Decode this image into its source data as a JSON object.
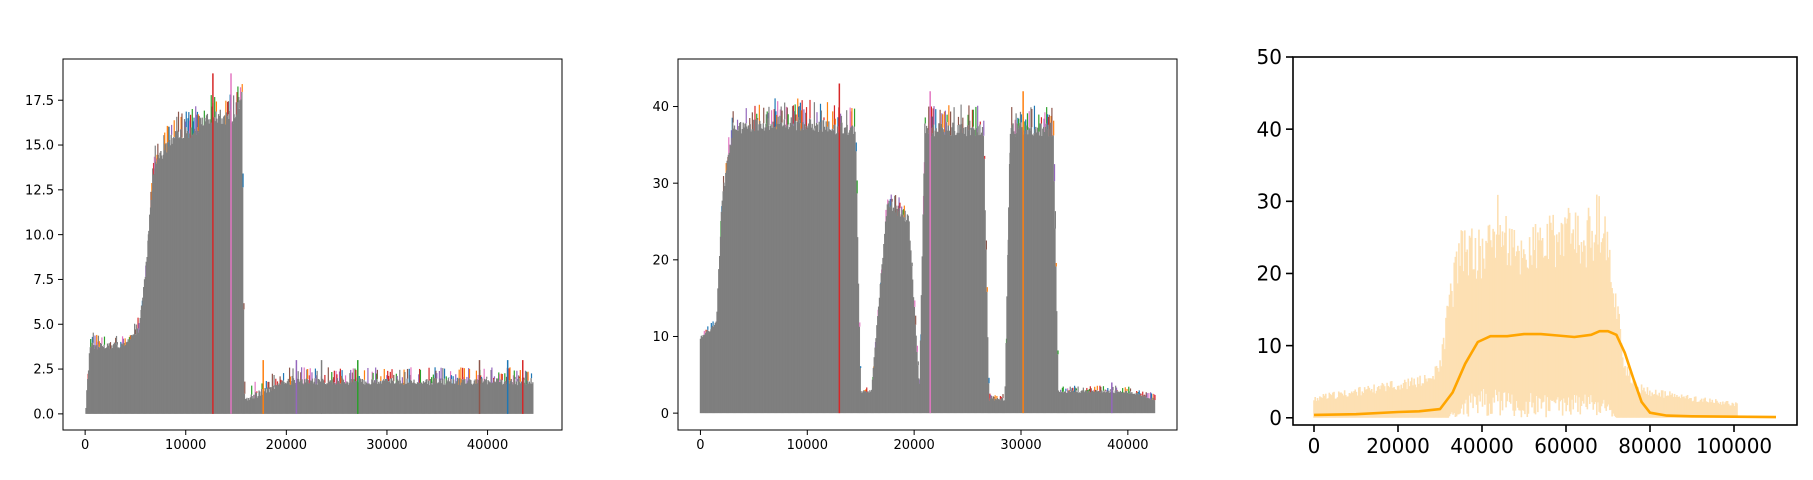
{
  "chart_data": [
    {
      "type": "line",
      "title": "",
      "xlabel": "",
      "ylabel": "",
      "xlim": [
        -2200,
        47400
      ],
      "ylim": [
        -0.9,
        19.8
      ],
      "xticks": [
        0,
        10000,
        20000,
        30000,
        40000
      ],
      "xtick_labels": [
        "0",
        "10000",
        "20000",
        "30000",
        "40000"
      ],
      "yticks": [
        0,
        2.5,
        5,
        7.5,
        10,
        12.5,
        15,
        17.5
      ],
      "ytick_labels": [
        "0.0",
        "2.5",
        "5.0",
        "7.5",
        "10.0",
        "12.5",
        "15.0",
        "17.5"
      ],
      "grid": false,
      "colors": [
        "#1f77b4",
        "#ff7f0e",
        "#2ca02c",
        "#d62728",
        "#9467bd",
        "#8c564b",
        "#e377c2",
        "#7f7f7f"
      ],
      "x": [
        0,
        500,
        2000,
        4000,
        5400,
        6000,
        6800,
        7800,
        9000,
        10500,
        12000,
        13500,
        14800,
        15600,
        15800,
        16000,
        20000,
        25000,
        30000,
        35000,
        40000,
        44500
      ],
      "series": [
        {
          "values": [
            0,
            4,
            4,
            4,
            5,
            8,
            14,
            15,
            16,
            16,
            17,
            17,
            17,
            18,
            1.5,
            1,
            2,
            2,
            2,
            2,
            2,
            2
          ]
        }
      ],
      "spikes": [
        {
          "x": 12700,
          "y": 19
        },
        {
          "x": 14500,
          "y": 19
        },
        {
          "x": 17700,
          "y": 3
        },
        {
          "x": 21000,
          "y": 3
        },
        {
          "x": 23500,
          "y": 3
        },
        {
          "x": 27100,
          "y": 3
        },
        {
          "x": 39200,
          "y": 3
        },
        {
          "x": 42000,
          "y": 3
        },
        {
          "x": 43500,
          "y": 3
        }
      ]
    },
    {
      "type": "line",
      "title": "",
      "xlabel": "",
      "ylabel": "",
      "xlim": [
        -2100,
        44600
      ],
      "ylim": [
        -2.2,
        46.2
      ],
      "xticks": [
        0,
        10000,
        20000,
        30000,
        40000
      ],
      "xtick_labels": [
        "0",
        "10000",
        "20000",
        "30000",
        "40000"
      ],
      "yticks": [
        0,
        10,
        20,
        30,
        40
      ],
      "ytick_labels": [
        "0",
        "10",
        "20",
        "30",
        "40"
      ],
      "grid": false,
      "colors": [
        "#1f77b4",
        "#ff7f0e",
        "#2ca02c",
        "#d62728",
        "#9467bd",
        "#8c564b",
        "#e377c2",
        "#7f7f7f"
      ],
      "x": [
        0,
        1500,
        2000,
        3000,
        8000,
        14500,
        15000,
        16000,
        17500,
        19500,
        20500,
        21000,
        26500,
        27000,
        28500,
        29000,
        33000,
        33500,
        40000,
        42500
      ],
      "series": [
        {
          "values": [
            10,
            12,
            28,
            38,
            39,
            38,
            3,
            3,
            28,
            26,
            3,
            38,
            38,
            2,
            2,
            38,
            38,
            3,
            3,
            2
          ]
        }
      ],
      "spikes": [
        {
          "x": 13000,
          "y": 43
        },
        {
          "x": 21500,
          "y": 42
        },
        {
          "x": 30200,
          "y": 42
        },
        {
          "x": 38500,
          "y": 4
        }
      ]
    },
    {
      "type": "area",
      "title": "",
      "xlabel": "",
      "ylabel": "",
      "xlim": [
        -5000,
        115000
      ],
      "ylim": [
        -1,
        50
      ],
      "xticks": [
        0,
        20000,
        40000,
        60000,
        80000,
        100000
      ],
      "xtick_labels": [
        "0",
        "20000",
        "40000",
        "60000",
        "80000",
        "100000"
      ],
      "yticks": [
        0,
        10,
        20,
        30,
        40,
        50
      ],
      "ytick_labels": [
        "0",
        "10",
        "20",
        "30",
        "40",
        "50"
      ],
      "grid": false,
      "series": [
        {
          "kind": "band",
          "color": "#fde0b3",
          "x": [
            0,
            10000,
            20000,
            28000,
            30000,
            32000,
            34000,
            36000,
            40000,
            44000,
            48000,
            52000,
            56000,
            60000,
            64000,
            68000,
            70000,
            72000,
            74000,
            76000,
            80000,
            90000,
            101000
          ],
          "upper": [
            3,
            4,
            5,
            6,
            8,
            16,
            24,
            26,
            25,
            30,
            25,
            26,
            27,
            28,
            27,
            30,
            25,
            18,
            8,
            5,
            4,
            3,
            2
          ],
          "lower": [
            0,
            0,
            0,
            0,
            0,
            0,
            2,
            3,
            4,
            4,
            3,
            4,
            3,
            3,
            4,
            3,
            2,
            0,
            0,
            0,
            0,
            0,
            0
          ]
        },
        {
          "kind": "line",
          "color": "#ffa500",
          "x": [
            0,
            10000,
            20000,
            25000,
            30000,
            33000,
            36000,
            39000,
            42000,
            46000,
            50000,
            54000,
            58000,
            62000,
            66000,
            68000,
            70000,
            72000,
            74000,
            76000,
            78000,
            80000,
            84000,
            90000,
            100000,
            110000
          ],
          "values": [
            0.4,
            0.5,
            0.8,
            0.9,
            1.2,
            3.5,
            7.5,
            10.5,
            11.3,
            11.3,
            11.6,
            11.6,
            11.4,
            11.2,
            11.5,
            12,
            12,
            11.5,
            9,
            5.5,
            2.2,
            0.7,
            0.3,
            0.2,
            0.15,
            0.1
          ]
        }
      ]
    }
  ]
}
